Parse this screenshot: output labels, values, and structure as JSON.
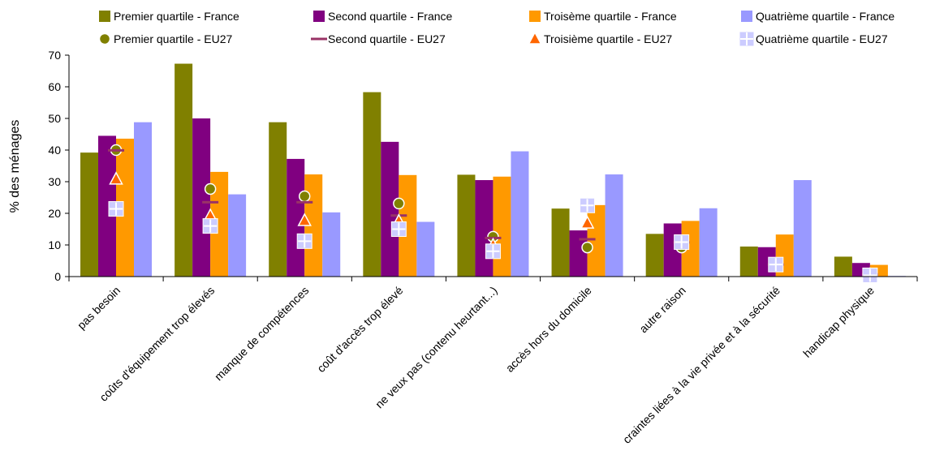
{
  "chart_data": {
    "type": "bar",
    "ylabel": "% des ménages",
    "ylim": [
      0,
      70
    ],
    "yticks": [
      0,
      10,
      20,
      30,
      40,
      50,
      60,
      70
    ],
    "grid": false,
    "legend_position": "top",
    "categories": [
      "pas besoin",
      "coûts d'équipement trop élevés",
      "manque de compétences",
      "coût d'accès trop élevé",
      "ne veux pas (contenu heurtant...)",
      "accès hors du domicile",
      "autre raison",
      "craintes liées à la vie privée et à la sécurité",
      "handicap physique"
    ],
    "series": [
      {
        "name": "Premier quartile - France",
        "kind": "bar",
        "color": "#808000",
        "values": [
          39.2,
          67.3,
          48.8,
          58.3,
          32.2,
          21.5,
          13.5,
          9.5,
          6.3
        ]
      },
      {
        "name": "Second quartile - France",
        "kind": "bar",
        "color": "#800080",
        "values": [
          44.5,
          50.0,
          37.2,
          42.6,
          30.5,
          14.6,
          16.8,
          9.3,
          4.3
        ]
      },
      {
        "name": "Troisème quartile - France",
        "kind": "bar",
        "color": "#ff9900",
        "values": [
          43.6,
          33.1,
          32.3,
          32.1,
          31.6,
          22.6,
          17.6,
          13.3,
          3.7
        ]
      },
      {
        "name": "Quatrième quartile - France",
        "kind": "bar",
        "color": "#9999ff",
        "values": [
          48.8,
          26.0,
          20.3,
          17.3,
          39.6,
          32.3,
          21.6,
          30.5,
          0.2
        ]
      },
      {
        "name": "Premier quartile - EU27",
        "kind": "marker",
        "marker": "circle",
        "color": "#808000",
        "values": [
          40.0,
          27.7,
          25.4,
          23.1,
          12.6,
          9.2,
          9.2,
          3.9,
          0.9
        ]
      },
      {
        "name": "Second quartile - EU27",
        "kind": "marker",
        "marker": "dash",
        "color": "#993366",
        "values": [
          39.9,
          23.5,
          23.5,
          19.3,
          12.2,
          11.8,
          10.8,
          3.8,
          0.7
        ]
      },
      {
        "name": "Troisième quartile - EU27",
        "kind": "marker",
        "marker": "triangle",
        "color": "#ff6600",
        "values": [
          30.8,
          19.2,
          17.7,
          17.5,
          9.9,
          16.9,
          10.4,
          3.7,
          0.6
        ]
      },
      {
        "name": "Quatrième quartile - EU27",
        "kind": "marker",
        "marker": "square-plus",
        "color": "#ccccff",
        "values": [
          21.4,
          16.0,
          11.2,
          15.0,
          8.0,
          22.5,
          10.9,
          3.8,
          0.4
        ]
      }
    ]
  }
}
